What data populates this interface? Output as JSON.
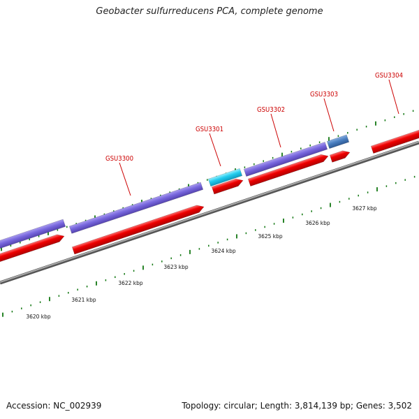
{
  "title": "Geobacter sulfurreducens PCA, complete genome",
  "footer": {
    "accession": "Accession: NC_002939",
    "topology": "Topology: circular; Length: 3,814,139 bp; Genes: 3,502"
  },
  "colors": {
    "backbone": "#8c8c8c",
    "cds_forward": "#ee0000",
    "gene_purple": "#7766dd",
    "gene_cyan": "#22ccee",
    "gene_steel": "#4a7fc0",
    "tick": "#117711",
    "gene_label": "#cc0000"
  },
  "scale_labels": [
    "3620 kbp",
    "3621 kbp",
    "3622 kbp",
    "3623 kbp",
    "3624 kbp",
    "3625 kbp",
    "3626 kbp",
    "3627 kbp"
  ],
  "gene_labels": [
    "GSU3300",
    "GSU3301",
    "GSU3302",
    "GSU3303",
    "GSU3304"
  ]
}
